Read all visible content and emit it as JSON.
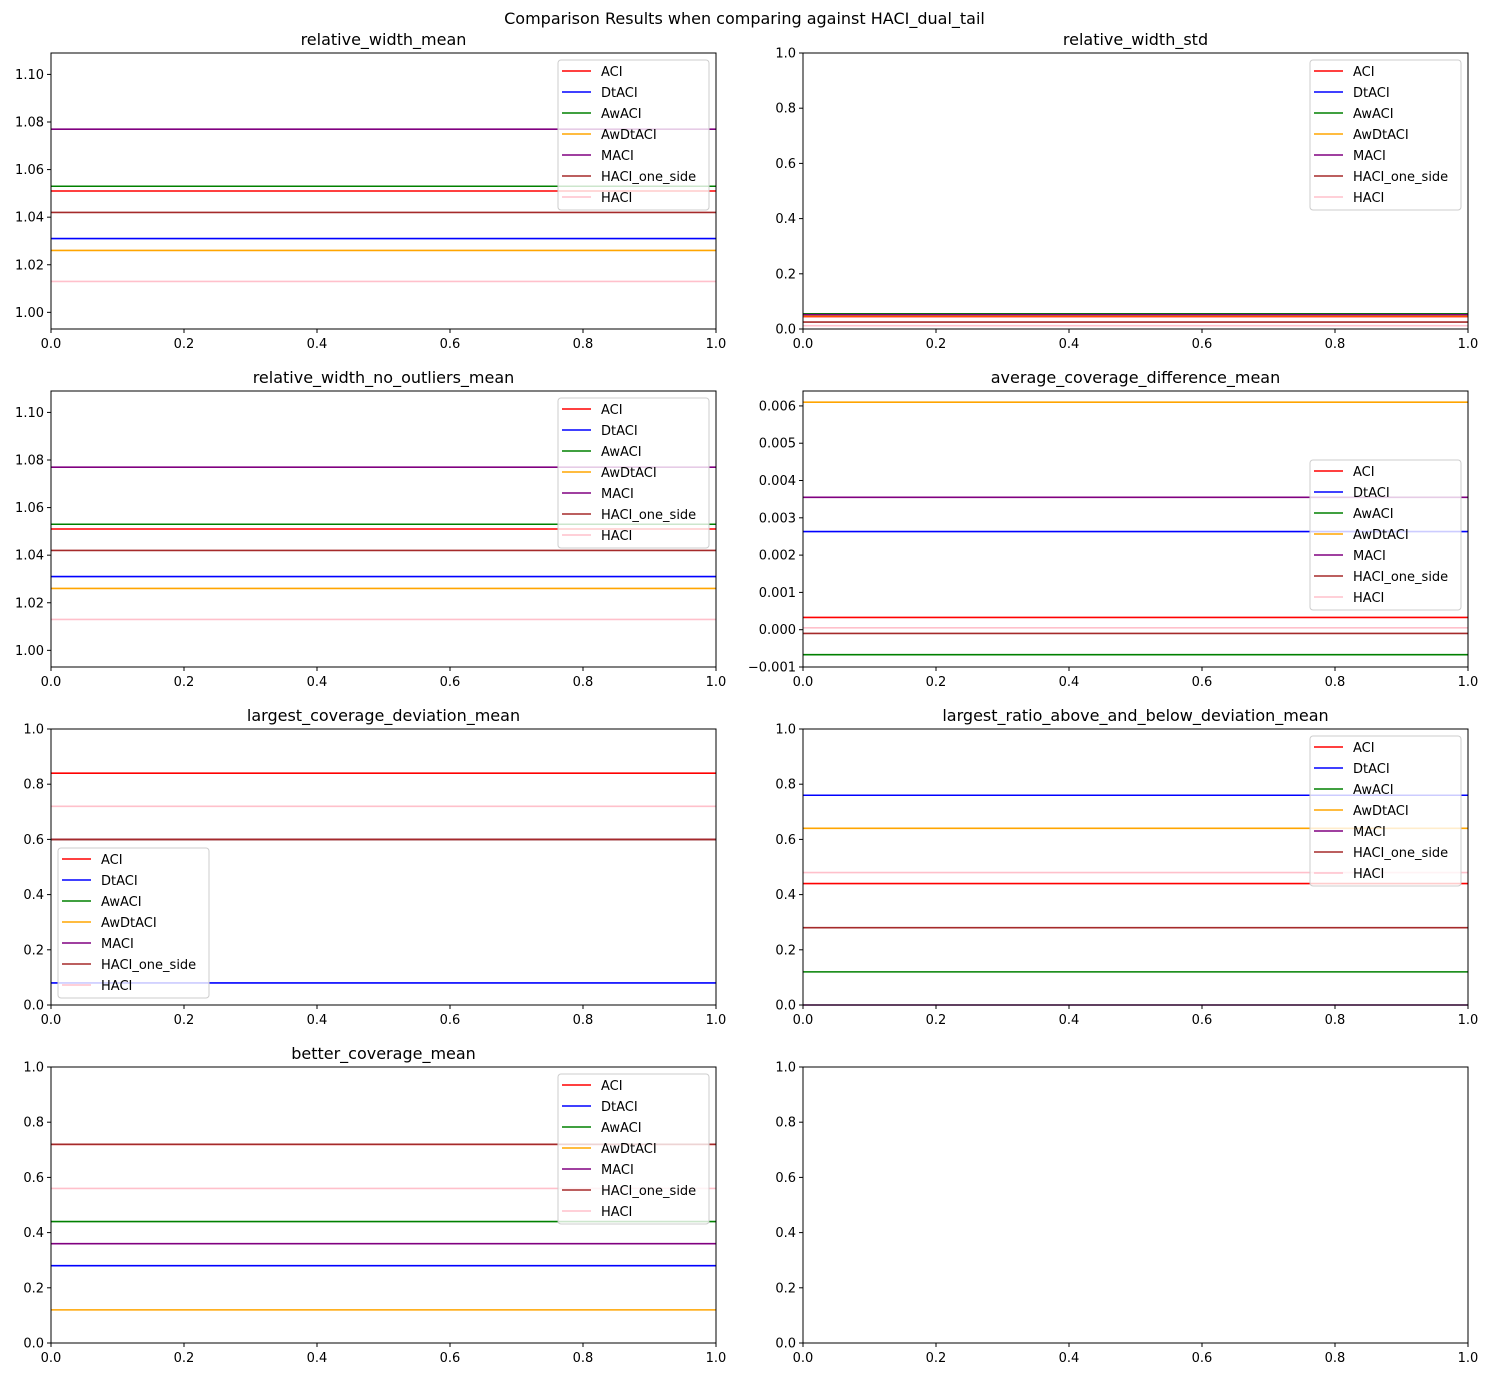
{
  "figure": {
    "suptitle": "Comparison Results when comparing against HACI_dual_tail"
  },
  "colors": {
    "ACI": "#ff0000",
    "DtACI": "#0000ff",
    "AwACI": "#008000",
    "AwDtACI": "#ffa500",
    "MACI": "#800080",
    "HACI_one_side": "#a52a2a",
    "HACI": "#ffc0cb"
  },
  "chart_data": [
    {
      "type": "line",
      "title": "relative_width_mean",
      "xlim": [
        0,
        1
      ],
      "ylim": [
        0.993,
        1.109
      ],
      "xticks": [
        "0.0",
        "0.2",
        "0.4",
        "0.6",
        "0.8",
        "1.0"
      ],
      "yticks": [
        "1.00",
        "1.02",
        "1.04",
        "1.06",
        "1.08",
        "1.10"
      ],
      "legend": "top-right",
      "series": [
        {
          "name": "ACI",
          "value": 1.051
        },
        {
          "name": "DtACI",
          "value": 1.031
        },
        {
          "name": "AwACI",
          "value": 1.053
        },
        {
          "name": "AwDtACI",
          "value": 1.026
        },
        {
          "name": "MACI",
          "value": 1.077
        },
        {
          "name": "HACI_one_side",
          "value": 1.042
        },
        {
          "name": "HACI",
          "value": 1.013
        }
      ]
    },
    {
      "type": "line",
      "title": "relative_width_std",
      "xlim": [
        0,
        1
      ],
      "ylim": [
        0,
        1
      ],
      "xticks": [
        "0.0",
        "0.2",
        "0.4",
        "0.6",
        "0.8",
        "1.0"
      ],
      "yticks": [
        "0.0",
        "0.2",
        "0.4",
        "0.6",
        "0.8",
        "1.0"
      ],
      "legend": "top-right",
      "series": [
        {
          "name": "ACI",
          "value": 0.045
        },
        {
          "name": "DtACI",
          "value": 0.05
        },
        {
          "name": "AwACI",
          "value": 0.055
        },
        {
          "name": "AwDtACI",
          "value": 0.048
        },
        {
          "name": "MACI",
          "value": 0.052
        },
        {
          "name": "HACI_one_side",
          "value": 0.025
        },
        {
          "name": "HACI",
          "value": 0.012
        }
      ]
    },
    {
      "type": "line",
      "title": "relative_width_no_outliers_mean",
      "xlim": [
        0,
        1
      ],
      "ylim": [
        0.993,
        1.109
      ],
      "xticks": [
        "0.0",
        "0.2",
        "0.4",
        "0.6",
        "0.8",
        "1.0"
      ],
      "yticks": [
        "1.00",
        "1.02",
        "1.04",
        "1.06",
        "1.08",
        "1.10"
      ],
      "legend": "top-right",
      "series": [
        {
          "name": "ACI",
          "value": 1.051
        },
        {
          "name": "DtACI",
          "value": 1.031
        },
        {
          "name": "AwACI",
          "value": 1.053
        },
        {
          "name": "AwDtACI",
          "value": 1.026
        },
        {
          "name": "MACI",
          "value": 1.077
        },
        {
          "name": "HACI_one_side",
          "value": 1.042
        },
        {
          "name": "HACI",
          "value": 1.013
        }
      ]
    },
    {
      "type": "line",
      "title": "average_coverage_difference_mean",
      "xlim": [
        0,
        1
      ],
      "ylim": [
        -0.001,
        0.0064
      ],
      "xticks": [
        "0.0",
        "0.2",
        "0.4",
        "0.6",
        "0.8",
        "1.0"
      ],
      "yticks": [
        "−0.001",
        "0.000",
        "0.001",
        "0.002",
        "0.003",
        "0.004",
        "0.005",
        "0.006"
      ],
      "ytick_values": [
        -0.001,
        0,
        0.001,
        0.002,
        0.003,
        0.004,
        0.005,
        0.006
      ],
      "legend": "center-right",
      "series": [
        {
          "name": "ACI",
          "value": 0.00033
        },
        {
          "name": "DtACI",
          "value": 0.00263
        },
        {
          "name": "AwACI",
          "value": -0.00067
        },
        {
          "name": "AwDtACI",
          "value": 0.0061
        },
        {
          "name": "MACI",
          "value": 0.00355
        },
        {
          "name": "HACI_one_side",
          "value": -0.0001
        },
        {
          "name": "HACI",
          "value": 5e-05
        }
      ]
    },
    {
      "type": "line",
      "title": "largest_coverage_deviation_mean",
      "xlim": [
        0,
        1
      ],
      "ylim": [
        0,
        1
      ],
      "xticks": [
        "0.0",
        "0.2",
        "0.4",
        "0.6",
        "0.8",
        "1.0"
      ],
      "yticks": [
        "0.0",
        "0.2",
        "0.4",
        "0.6",
        "0.8",
        "1.0"
      ],
      "legend": "bottom-left",
      "series": [
        {
          "name": "ACI",
          "value": 0.84
        },
        {
          "name": "DtACI",
          "value": 0.08
        },
        {
          "name": "AwACI",
          "value": 0.6
        },
        {
          "name": "AwDtACI",
          "value": 0.6
        },
        {
          "name": "MACI",
          "value": 0.6
        },
        {
          "name": "HACI_one_side",
          "value": 0.6
        },
        {
          "name": "HACI",
          "value": 0.72
        }
      ]
    },
    {
      "type": "line",
      "title": "largest_ratio_above_and_below_deviation_mean",
      "xlim": [
        0,
        1
      ],
      "ylim": [
        0,
        1
      ],
      "xticks": [
        "0.0",
        "0.2",
        "0.4",
        "0.6",
        "0.8",
        "1.0"
      ],
      "yticks": [
        "0.0",
        "0.2",
        "0.4",
        "0.6",
        "0.8",
        "1.0"
      ],
      "legend": "top-right",
      "series": [
        {
          "name": "ACI",
          "value": 0.44
        },
        {
          "name": "DtACI",
          "value": 0.76
        },
        {
          "name": "AwACI",
          "value": 0.12
        },
        {
          "name": "AwDtACI",
          "value": 0.64
        },
        {
          "name": "MACI",
          "value": 0.0
        },
        {
          "name": "HACI_one_side",
          "value": 0.28
        },
        {
          "name": "HACI",
          "value": 0.48
        }
      ]
    },
    {
      "type": "line",
      "title": "better_coverage_mean",
      "xlim": [
        0,
        1
      ],
      "ylim": [
        0,
        1
      ],
      "xticks": [
        "0.0",
        "0.2",
        "0.4",
        "0.6",
        "0.8",
        "1.0"
      ],
      "yticks": [
        "0.0",
        "0.2",
        "0.4",
        "0.6",
        "0.8",
        "1.0"
      ],
      "legend": "top-right",
      "series": [
        {
          "name": "ACI",
          "value": 0.72
        },
        {
          "name": "DtACI",
          "value": 0.28
        },
        {
          "name": "AwACI",
          "value": 0.44
        },
        {
          "name": "AwDtACI",
          "value": 0.12
        },
        {
          "name": "MACI",
          "value": 0.36
        },
        {
          "name": "HACI_one_side",
          "value": 0.72
        },
        {
          "name": "HACI",
          "value": 0.56
        }
      ]
    },
    {
      "type": "line",
      "title": "",
      "xlim": [
        0,
        1
      ],
      "ylim": [
        0,
        1
      ],
      "xticks": [
        "0.0",
        "0.2",
        "0.4",
        "0.6",
        "0.8",
        "1.0"
      ],
      "yticks": [
        "0.0",
        "0.2",
        "0.4",
        "0.6",
        "0.8",
        "1.0"
      ],
      "legend": "none",
      "series": []
    }
  ]
}
